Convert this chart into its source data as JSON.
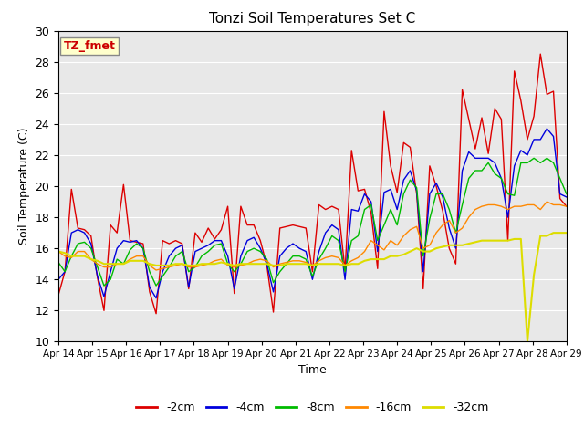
{
  "title": "Tonzi Soil Temperatures Set C",
  "xlabel": "Time",
  "ylabel": "Soil Temperature (C)",
  "ylim": [
    10,
    30
  ],
  "annotation_label": "TZ_fmet",
  "annotation_bg": "#ffffcc",
  "annotation_fg": "#cc0000",
  "bg_color": "#e8e8e8",
  "grid_color": "#ffffff",
  "series_colors": [
    "#dd0000",
    "#0000dd",
    "#00bb00",
    "#ff8800",
    "#dddd00"
  ],
  "series_labels": [
    "-2cm",
    "-4cm",
    "-8cm",
    "-16cm",
    "-32cm"
  ],
  "x_tick_labels": [
    "Apr 14",
    "Apr 15",
    "Apr 16",
    "Apr 17",
    "Apr 18",
    "Apr 19",
    "Apr 20",
    "Apr 21",
    "Apr 22",
    "Apr 23",
    "Apr 24",
    "Apr 25",
    "Apr 26",
    "Apr 27",
    "Apr 28",
    "Apr 29"
  ],
  "series_2cm": [
    13.0,
    14.5,
    19.8,
    17.3,
    17.2,
    16.8,
    14.1,
    12.0,
    17.5,
    17.0,
    20.1,
    16.5,
    16.4,
    16.3,
    13.2,
    11.8,
    16.5,
    16.3,
    16.5,
    16.3,
    13.4,
    17.0,
    16.4,
    17.3,
    16.6,
    17.2,
    18.7,
    13.1,
    18.7,
    17.5,
    17.5,
    16.5,
    14.9,
    11.9,
    17.3,
    17.4,
    17.5,
    17.4,
    17.3,
    14.5,
    18.8,
    18.5,
    18.7,
    18.5,
    14.6,
    22.3,
    19.7,
    19.8,
    18.3,
    14.7,
    24.8,
    21.3,
    19.6,
    22.8,
    22.5,
    19.5,
    13.4,
    21.3,
    20.0,
    18.4,
    16.0,
    15.0,
    26.2,
    24.3,
    22.4,
    24.4,
    22.1,
    25.0,
    24.3,
    16.5,
    27.4,
    25.5,
    23.0,
    24.5,
    28.5,
    25.9,
    26.1,
    19.2,
    18.7
  ],
  "series_4cm": [
    14.0,
    14.5,
    17.0,
    17.2,
    17.0,
    16.3,
    14.2,
    12.9,
    14.5,
    16.0,
    16.5,
    16.4,
    16.5,
    16.0,
    13.5,
    12.8,
    14.5,
    15.5,
    16.0,
    16.2,
    13.5,
    15.8,
    16.0,
    16.2,
    16.5,
    16.5,
    15.5,
    13.4,
    15.5,
    16.5,
    16.7,
    16.0,
    15.0,
    13.2,
    15.5,
    16.0,
    16.3,
    16.0,
    15.8,
    14.0,
    15.8,
    17.0,
    17.5,
    17.2,
    14.0,
    18.5,
    18.4,
    19.5,
    19.0,
    15.8,
    19.6,
    19.8,
    18.5,
    20.4,
    21.0,
    19.7,
    14.5,
    19.5,
    20.2,
    19.3,
    17.3,
    16.0,
    21.0,
    22.2,
    21.8,
    21.8,
    21.8,
    21.5,
    20.5,
    18.0,
    21.3,
    22.3,
    22.0,
    23.0,
    23.0,
    23.7,
    23.2,
    19.5,
    19.3
  ],
  "series_8cm": [
    15.1,
    14.5,
    15.5,
    16.3,
    16.4,
    16.0,
    14.8,
    13.6,
    14.0,
    15.3,
    15.0,
    15.9,
    16.3,
    16.0,
    14.5,
    13.6,
    14.2,
    14.8,
    15.5,
    15.8,
    14.5,
    14.8,
    15.5,
    15.8,
    16.2,
    16.3,
    15.0,
    14.5,
    15.0,
    15.8,
    16.0,
    15.8,
    15.3,
    13.8,
    14.5,
    15.0,
    15.5,
    15.5,
    15.3,
    14.2,
    15.3,
    16.0,
    16.8,
    16.5,
    14.5,
    16.5,
    16.8,
    18.5,
    18.8,
    16.5,
    17.5,
    18.5,
    17.5,
    19.5,
    20.4,
    19.9,
    15.5,
    17.9,
    19.5,
    19.5,
    18.5,
    17.0,
    18.8,
    20.5,
    21.0,
    21.0,
    21.5,
    20.8,
    20.5,
    19.5,
    19.4,
    21.5,
    21.5,
    21.8,
    21.5,
    21.8,
    21.5,
    20.5,
    19.5
  ],
  "series_16cm": [
    15.8,
    15.5,
    15.4,
    15.8,
    15.8,
    15.3,
    15.0,
    14.8,
    14.8,
    15.0,
    15.0,
    15.3,
    15.5,
    15.5,
    14.9,
    14.6,
    14.7,
    14.8,
    14.9,
    15.0,
    14.8,
    14.8,
    14.9,
    15.0,
    15.2,
    15.3,
    14.9,
    14.8,
    14.9,
    15.0,
    15.2,
    15.3,
    15.2,
    14.8,
    15.0,
    15.1,
    15.2,
    15.2,
    15.1,
    14.9,
    15.2,
    15.4,
    15.5,
    15.4,
    14.9,
    15.2,
    15.4,
    15.8,
    16.5,
    16.2,
    15.9,
    16.5,
    16.2,
    16.8,
    17.2,
    17.4,
    16.0,
    16.2,
    17.0,
    17.5,
    17.8,
    17.0,
    17.3,
    18.0,
    18.5,
    18.7,
    18.8,
    18.8,
    18.7,
    18.5,
    18.7,
    18.7,
    18.8,
    18.8,
    18.5,
    19.0,
    18.8,
    18.8,
    18.7
  ],
  "series_32cm": [
    15.8,
    15.7,
    15.5,
    15.5,
    15.5,
    15.3,
    15.2,
    15.0,
    15.0,
    15.0,
    15.0,
    15.2,
    15.2,
    15.2,
    15.0,
    14.9,
    14.9,
    14.9,
    15.0,
    15.0,
    14.9,
    14.9,
    15.0,
    15.0,
    15.0,
    15.1,
    15.0,
    14.9,
    15.0,
    15.0,
    15.0,
    15.0,
    15.0,
    14.9,
    14.9,
    15.0,
    15.0,
    15.0,
    15.0,
    14.9,
    15.0,
    15.0,
    15.0,
    15.0,
    14.9,
    15.0,
    15.0,
    15.2,
    15.3,
    15.3,
    15.3,
    15.5,
    15.5,
    15.6,
    15.8,
    16.0,
    15.8,
    15.8,
    16.0,
    16.1,
    16.2,
    16.2,
    16.2,
    16.3,
    16.4,
    16.5,
    16.5,
    16.5,
    16.5,
    16.5,
    16.6,
    16.6,
    10.0,
    14.3,
    16.8,
    16.8,
    17.0,
    17.0,
    17.0
  ]
}
